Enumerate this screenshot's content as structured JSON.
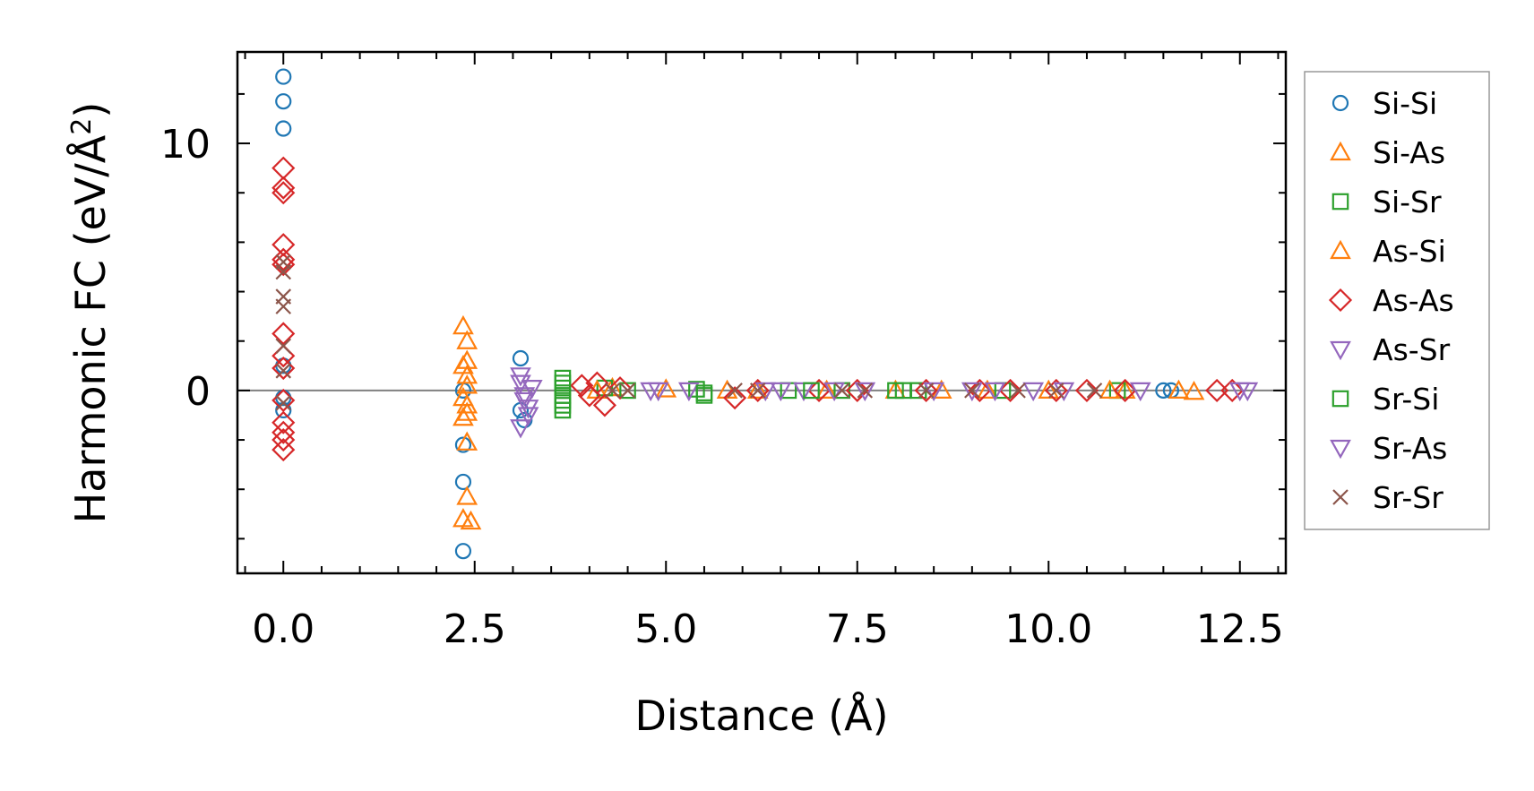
{
  "chart_data": {
    "type": "scatter",
    "title": "",
    "xlabel": "Distance (Å)",
    "ylabel": "Harmonic FC (eV/Å²)",
    "ylabel_main": "Harmonic FC (eV/Å",
    "ylabel_sup": "2",
    "ylabel_close": ")",
    "xlim": [
      -0.6,
      13.1
    ],
    "ylim": [
      -7.4,
      13.7
    ],
    "x_ticks": [
      0.0,
      2.5,
      5.0,
      7.5,
      10.0,
      12.5
    ],
    "x_tick_labels": [
      "0.0",
      "2.5",
      "5.0",
      "7.5",
      "10.0",
      "12.5"
    ],
    "y_ticks": [
      0,
      10
    ],
    "y_tick_labels": [
      "0",
      "10"
    ],
    "zero_line": true,
    "grid": false,
    "legend_position": "outside-right",
    "series": [
      {
        "name": "Si-Si",
        "color": "#1f77b4",
        "marker": "circle",
        "points": [
          [
            0,
            12.7
          ],
          [
            0,
            11.7
          ],
          [
            0,
            10.6
          ],
          [
            0,
            1.0
          ],
          [
            0,
            -0.3
          ],
          [
            0,
            -0.8
          ],
          [
            2.35,
            0
          ],
          [
            2.35,
            -2.2
          ],
          [
            2.35,
            -3.7
          ],
          [
            2.35,
            -6.5
          ],
          [
            3.1,
            1.3
          ],
          [
            3.1,
            -0.8
          ],
          [
            3.15,
            -1.2
          ],
          [
            11.5,
            0
          ],
          [
            11.6,
            0
          ]
        ]
      },
      {
        "name": "Si-As",
        "color": "#ff7f0e",
        "marker": "triangle-up",
        "points": [
          [
            2.35,
            2.6
          ],
          [
            2.4,
            2.0
          ],
          [
            2.35,
            1.0
          ],
          [
            2.4,
            0.6
          ],
          [
            2.4,
            0.2
          ],
          [
            2.35,
            -0.3
          ],
          [
            2.4,
            -0.6
          ],
          [
            2.35,
            -1.1
          ],
          [
            2.4,
            -2.1
          ],
          [
            2.4,
            -4.3
          ],
          [
            2.35,
            -5.2
          ],
          [
            2.45,
            -5.3
          ],
          [
            4.3,
            0.1
          ],
          [
            5.0,
            0.05
          ],
          [
            6.2,
            0
          ],
          [
            7.1,
            0
          ],
          [
            8.0,
            0
          ],
          [
            9.2,
            0
          ],
          [
            10.0,
            0
          ],
          [
            11.0,
            0
          ],
          [
            11.7,
            0
          ],
          [
            11.9,
            -0.05
          ]
        ]
      },
      {
        "name": "Si-Sr",
        "color": "#2ca02c",
        "marker": "square",
        "points": [
          [
            3.65,
            0.5
          ],
          [
            3.65,
            0.1
          ],
          [
            3.65,
            -0.4
          ],
          [
            3.65,
            -0.8
          ],
          [
            4.2,
            0.1
          ],
          [
            4.5,
            0.0
          ],
          [
            5.4,
            0.05
          ],
          [
            5.5,
            -0.2
          ],
          [
            6.6,
            0
          ],
          [
            7.3,
            0
          ],
          [
            8.0,
            0
          ],
          [
            8.3,
            0
          ],
          [
            9.4,
            0
          ],
          [
            10.9,
            0
          ]
        ]
      },
      {
        "name": "As-Si",
        "color": "#ff7f0e",
        "marker": "triangle-up",
        "points": [
          [
            2.4,
            1.2
          ],
          [
            2.4,
            -0.9
          ],
          [
            4.1,
            0.0
          ],
          [
            5.8,
            0.0
          ],
          [
            8.6,
            0.0
          ],
          [
            10.8,
            0.0
          ]
        ]
      },
      {
        "name": "As-As",
        "color": "#d62728",
        "marker": "diamond",
        "points": [
          [
            0,
            9.0
          ],
          [
            0,
            8.2
          ],
          [
            0,
            8.0
          ],
          [
            0,
            5.9
          ],
          [
            0,
            5.3
          ],
          [
            0,
            5.1
          ],
          [
            0,
            2.3
          ],
          [
            0,
            1.4
          ],
          [
            0,
            0.9
          ],
          [
            0,
            -0.4
          ],
          [
            0,
            -1.3
          ],
          [
            0,
            -1.7
          ],
          [
            0,
            -2.0
          ],
          [
            0,
            -2.4
          ],
          [
            3.9,
            0.2
          ],
          [
            4.0,
            -0.2
          ],
          [
            4.1,
            0.3
          ],
          [
            4.2,
            -0.6
          ],
          [
            4.4,
            0.1
          ],
          [
            5.9,
            -0.3
          ],
          [
            6.2,
            0.0
          ],
          [
            7.0,
            0.0
          ],
          [
            7.5,
            0.0
          ],
          [
            8.4,
            0.0
          ],
          [
            9.1,
            0.0
          ],
          [
            9.5,
            0.0
          ],
          [
            10.1,
            0.0
          ],
          [
            10.5,
            0.0
          ],
          [
            11.0,
            0.0
          ],
          [
            12.2,
            0.0
          ],
          [
            12.4,
            0.0
          ]
        ]
      },
      {
        "name": "As-Sr",
        "color": "#9467bd",
        "marker": "triangle-down",
        "points": [
          [
            3.1,
            0.3
          ],
          [
            3.15,
            -0.4
          ],
          [
            3.2,
            -1.0
          ],
          [
            3.1,
            -1.5
          ],
          [
            3.25,
            0.1
          ],
          [
            4.9,
            0.0
          ],
          [
            5.3,
            0.0
          ],
          [
            6.3,
            0.0
          ],
          [
            6.8,
            0.0
          ],
          [
            7.2,
            0.0
          ],
          [
            8.5,
            0.0
          ],
          [
            9.3,
            0.0
          ],
          [
            10.2,
            0.0
          ],
          [
            12.5,
            0.0
          ]
        ]
      },
      {
        "name": "Sr-Si",
        "color": "#2ca02c",
        "marker": "square",
        "points": [
          [
            3.65,
            0.3
          ],
          [
            3.65,
            -0.2
          ],
          [
            3.65,
            -0.6
          ],
          [
            5.5,
            -0.1
          ],
          [
            6.9,
            0.0
          ],
          [
            8.1,
            0.0
          ]
        ]
      },
      {
        "name": "Sr-As",
        "color": "#9467bd",
        "marker": "triangle-down",
        "points": [
          [
            3.1,
            0.6
          ],
          [
            3.15,
            -0.2
          ],
          [
            3.2,
            -0.7
          ],
          [
            4.8,
            0.0
          ],
          [
            6.5,
            0.0
          ],
          [
            7.6,
            0.0
          ],
          [
            9.0,
            0.0
          ],
          [
            9.8,
            0.0
          ],
          [
            11.2,
            0.0
          ],
          [
            12.6,
            0.0
          ]
        ]
      },
      {
        "name": "Sr-Sr",
        "color": "#8c564b",
        "marker": "x",
        "points": [
          [
            0,
            5.2
          ],
          [
            0,
            4.8
          ],
          [
            0,
            3.8
          ],
          [
            0,
            3.4
          ],
          [
            0,
            1.8
          ],
          [
            0,
            0.8
          ],
          [
            0,
            -0.5
          ],
          [
            4.3,
            0.0
          ],
          [
            4.5,
            0.0
          ],
          [
            5.9,
            0.0
          ],
          [
            6.2,
            0.0
          ],
          [
            7.3,
            0.0
          ],
          [
            7.6,
            0.0
          ],
          [
            8.4,
            0.0
          ],
          [
            9.0,
            0.0
          ],
          [
            9.6,
            0.0
          ],
          [
            10.1,
            0.0
          ],
          [
            10.6,
            0.0
          ]
        ]
      }
    ]
  }
}
